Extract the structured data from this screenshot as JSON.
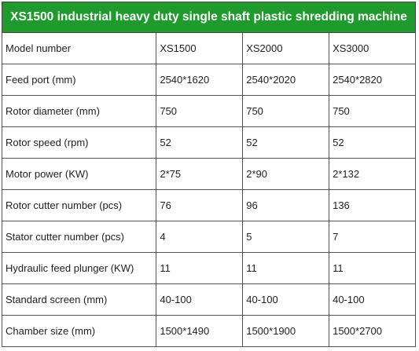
{
  "title": "XS1500 industrial heavy duty single shaft plastic shredding machine",
  "accent_color": "#1f9a2c",
  "rows": [
    {
      "label": "Model number",
      "values": [
        "XS1500",
        "XS2000",
        "XS3000"
      ]
    },
    {
      "label": "Feed port (mm)",
      "values": [
        "2540*1620",
        "2540*2020",
        "2540*2820"
      ]
    },
    {
      "label": "Rotor diameter (mm)",
      "values": [
        "750",
        "750",
        "750"
      ]
    },
    {
      "label": "Rotor speed (rpm)",
      "values": [
        "52",
        "52",
        "52"
      ]
    },
    {
      "label": "Motor power (KW)",
      "values": [
        "2*75",
        "2*90",
        "2*132"
      ]
    },
    {
      "label": "Rotor cutter number (pcs)",
      "values": [
        "76",
        "96",
        "136"
      ]
    },
    {
      "label": "Stator cutter number (pcs)",
      "values": [
        "4",
        "5",
        "7"
      ]
    },
    {
      "label": "Hydraulic feed plunger (KW)",
      "values": [
        "11",
        "11",
        "11"
      ]
    },
    {
      "label": "Standard screen (mm)",
      "values": [
        "40-100",
        "40-100",
        "40-100"
      ]
    },
    {
      "label": "Chamber size (mm)",
      "values": [
        "1500*1490",
        "1500*1900",
        "1500*2700"
      ]
    }
  ]
}
